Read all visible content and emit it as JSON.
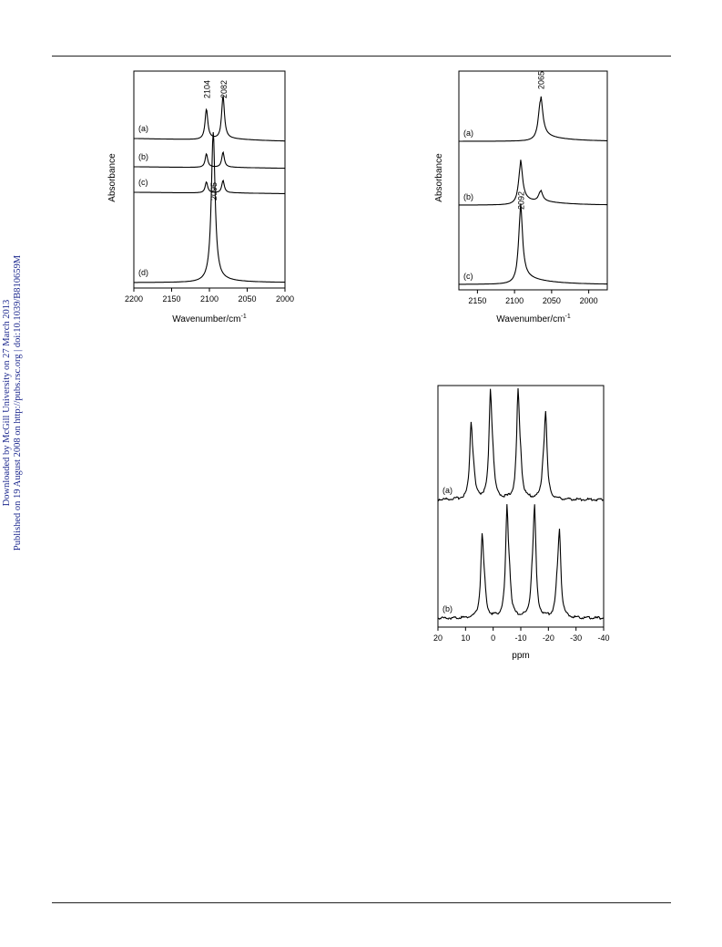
{
  "side_note": {
    "line1": "Downloaded by McGill University on 27 March 2013",
    "line2": "Published on 19 August 2008 on http://pubs.rsc.org | doi:10.1039/B810659M"
  },
  "chart_data": [
    {
      "type": "line",
      "xlabel": "Wavenumber/cm",
      "xlabel_superscript": "-1",
      "ylabel": "Absorbance",
      "xlim": [
        2200,
        2000
      ],
      "x_ticks": [
        2200,
        2150,
        2100,
        2050,
        2000
      ],
      "y_ticks_shown": false,
      "grid": false,
      "series": [
        {
          "label": "(a)",
          "peaks": [
            {
              "x": 2104,
              "height": 0.55
            },
            {
              "x": 2082,
              "height": 0.78
            }
          ]
        },
        {
          "label": "(b)",
          "peaks": [
            {
              "x": 2104,
              "height": 0.45
            },
            {
              "x": 2082,
              "height": 0.5
            }
          ]
        },
        {
          "label": "(c)",
          "peaks": [
            {
              "x": 2104,
              "height": 0.4
            },
            {
              "x": 2082,
              "height": 0.45
            }
          ]
        },
        {
          "label": "(d)",
          "peaks": [
            {
              "x": 2095,
              "height": 1.0
            }
          ]
        }
      ],
      "annotations": [
        "2104",
        "2082",
        "2095"
      ]
    },
    {
      "type": "line",
      "xlabel": "Wavenumber/cm",
      "xlabel_superscript": "-1",
      "ylabel": "Absorbance",
      "xlim": [
        2175,
        1975
      ],
      "x_ticks": [
        2150,
        2100,
        2050,
        2000
      ],
      "y_ticks_shown": false,
      "grid": false,
      "series": [
        {
          "label": "(a)",
          "peaks": [
            {
              "x": 2065,
              "height": 0.9
            }
          ]
        },
        {
          "label": "(b)",
          "peaks": [
            {
              "x": 2092,
              "height": 0.75
            },
            {
              "x": 2065,
              "height": 0.2
            }
          ]
        },
        {
          "label": "(c)",
          "peaks": [
            {
              "x": 2092,
              "height": 1.0
            }
          ]
        }
      ],
      "annotations": [
        "2065",
        "2092"
      ]
    },
    {
      "type": "line",
      "xlabel": "ppm",
      "ylabel": "",
      "xlim": [
        20,
        -40
      ],
      "x_ticks": [
        20,
        10,
        0,
        -10,
        -20,
        -30,
        -40
      ],
      "y_ticks_shown": false,
      "grid": false,
      "series": [
        {
          "label": "(a)",
          "peaks": [
            {
              "x": 8,
              "height": 0.7
            },
            {
              "x": 1,
              "height": 1.0
            },
            {
              "x": -9,
              "height": 1.0
            },
            {
              "x": -19,
              "height": 0.8
            }
          ]
        },
        {
          "label": "(b)",
          "peaks": [
            {
              "x": 4,
              "height": 0.75
            },
            {
              "x": -5,
              "height": 1.0
            },
            {
              "x": -15,
              "height": 1.0
            },
            {
              "x": -24,
              "height": 0.8
            }
          ]
        }
      ]
    }
  ]
}
